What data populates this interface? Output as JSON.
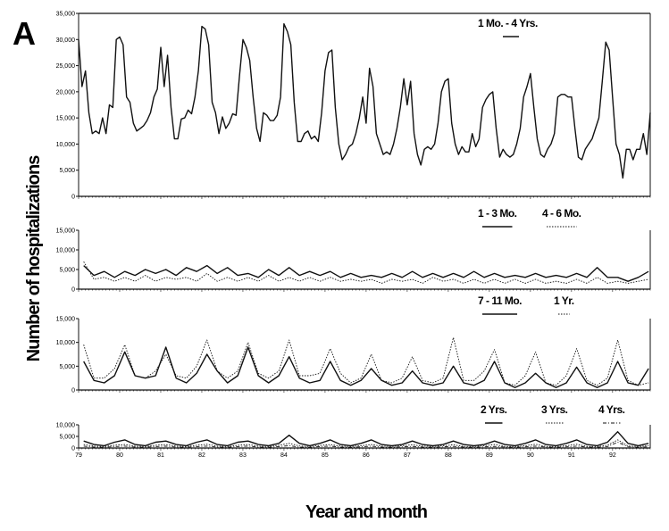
{
  "chart_data": {
    "type": "line",
    "panel_label": "A",
    "ylabel": "Number of hospitalizations",
    "xlabel": "Year and month",
    "x_tick_labels": [
      "79",
      "80",
      "81",
      "82",
      "83",
      "84",
      "85",
      "86",
      "87",
      "88",
      "89",
      "90",
      "91",
      "92"
    ],
    "x_start": "1979-01",
    "panels": [
      {
        "ylim": [
          0,
          35000
        ],
        "y_ticks": [
          "0",
          "5,000",
          "10,000",
          "15,000",
          "20,000",
          "25,000",
          "30,000",
          "35,000"
        ],
        "y_tick_values": [
          0,
          5000,
          10000,
          15000,
          20000,
          25000,
          30000,
          35000
        ],
        "resolution": "monthly",
        "series": [
          {
            "name": "1 Mo. - 4 Yrs.",
            "style": "solid",
            "values": [
              30000,
              21000,
              24000,
              16000,
              12000,
              12500,
              12000,
              15000,
              12000,
              17500,
              17000,
              30000,
              30500,
              29000,
              19000,
              18000,
              14000,
              12500,
              13000,
              13500,
              14500,
              16000,
              19000,
              20500,
              28500,
              21000,
              27000,
              17000,
              11000,
              11000,
              14800,
              15000,
              16500,
              15800,
              19000,
              24000,
              32500,
              32000,
              29000,
              18000,
              16000,
              12000,
              15200,
              13000,
              14000,
              15800,
              15500,
              23000,
              30000,
              28500,
              26000,
              19000,
              13000,
              10500,
              16000,
              15500,
              14500,
              14500,
              15500,
              19000,
              33000,
              31500,
              29000,
              18000,
              10500,
              10500,
              12000,
              12500,
              11000,
              11500,
              10500,
              16000,
              24000,
              27500,
              28000,
              17000,
              10000,
              7000,
              8000,
              9500,
              10000,
              12000,
              15000,
              19000,
              14000,
              24500,
              21000,
              12000,
              10000,
              8000,
              8500,
              8000,
              10000,
              13000,
              17000,
              22500,
              17500,
              22000,
              12000,
              8000,
              6000,
              9000,
              9500,
              9000,
              10000,
              14000,
              20000,
              22000,
              22500,
              14000,
              10000,
              8000,
              9500,
              8500,
              8500,
              12000,
              9500,
              11000,
              17000,
              18500,
              19500,
              20000,
              13000,
              7500,
              9000,
              8000,
              7500,
              8000,
              10000,
              13000,
              19000,
              21000,
              23500,
              17000,
              11000,
              8000,
              7500,
              9000,
              10000,
              12000,
              19000,
              19500,
              19500,
              19000,
              19000,
              13000,
              7500,
              7000,
              9000,
              10000,
              11000,
              13000,
              15000,
              22000,
              29500,
              28000,
              19000,
              10000,
              8000,
              3500,
              9000,
              9000,
              7000,
              9000,
              9000,
              12000,
              8000,
              16000
            ]
          }
        ]
      },
      {
        "ylim": [
          0,
          15000
        ],
        "y_ticks": [
          "0",
          "5,000",
          "10,000",
          "15,000"
        ],
        "y_tick_values": [
          0,
          5000,
          10000,
          15000
        ],
        "resolution": "quarterly",
        "series": [
          {
            "name": "1 - 3 Mo.",
            "style": "solid",
            "values": [
              6000,
              3500,
              4500,
              3000,
              4500,
              3500,
              5000,
              4000,
              5000,
              3500,
              5500,
              4500,
              6000,
              4000,
              5500,
              3500,
              4000,
              3000,
              5000,
              3500,
              5500,
              3500,
              4500,
              3500,
              4500,
              3000,
              4000,
              3000,
              3500,
              3000,
              4000,
              3000,
              4500,
              3000,
              4000,
              3000,
              4000,
              3000,
              4500,
              3000,
              4000,
              3000,
              3500,
              3000,
              4000,
              3000,
              3500,
              3000,
              4000,
              3000,
              5500,
              3000,
              3000,
              2000,
              3000,
              4500
            ]
          },
          {
            "name": "4 - 6 Mo.",
            "style": "dotted",
            "values": [
              7000,
              2500,
              3000,
              2000,
              3000,
              2000,
              3500,
              2000,
              3000,
              2500,
              3000,
              2000,
              4000,
              2000,
              3000,
              2000,
              3000,
              2000,
              3500,
              2000,
              3000,
              2000,
              3000,
              2000,
              3000,
              2000,
              2500,
              2000,
              2500,
              1500,
              2500,
              2000,
              2500,
              1500,
              3000,
              2000,
              2500,
              1500,
              2500,
              1500,
              2500,
              1500,
              2500,
              1500,
              2500,
              1500,
              2000,
              1500,
              2500,
              1500,
              3000,
              1500,
              2000,
              1500,
              2000,
              2500
            ]
          }
        ]
      },
      {
        "ylim": [
          0,
          15000
        ],
        "y_ticks": [
          "0",
          "5,000",
          "10,000",
          "15,000"
        ],
        "y_tick_values": [
          0,
          5000,
          10000,
          15000
        ],
        "resolution": "quarterly",
        "series": [
          {
            "name": "7 - 11 Mo.",
            "style": "solid",
            "values": [
              6000,
              2000,
              1500,
              3000,
              8000,
              3000,
              2500,
              3000,
              9000,
              2500,
              1500,
              3500,
              7500,
              4000,
              1500,
              3000,
              9000,
              3000,
              1500,
              3000,
              7000,
              2500,
              1500,
              2000,
              6000,
              2000,
              1000,
              2000,
              4500,
              2000,
              1000,
              1500,
              4000,
              1500,
              1000,
              1500,
              5000,
              1500,
              1000,
              2000,
              6000,
              1500,
              500,
              1500,
              3500,
              1500,
              500,
              1500,
              4800,
              1500,
              500,
              1500,
              6000,
              1500,
              1000,
              4500
            ]
          },
          {
            "name": "1 Yr.",
            "style": "dotted",
            "values": [
              9500,
              2500,
              2500,
              4500,
              9500,
              3000,
              2500,
              4000,
              7500,
              3000,
              2500,
              5000,
              10500,
              4000,
              2500,
              4000,
              10000,
              3500,
              2500,
              4000,
              10500,
              3000,
              3000,
              3500,
              8700,
              3500,
              1500,
              2500,
              7500,
              2000,
              1500,
              2500,
              7000,
              2000,
              1500,
              2500,
              11000,
              2000,
              2000,
              4000,
              8500,
              1500,
              1000,
              3000,
              8000,
              1500,
              1000,
              3000,
              8700,
              2000,
              1000,
              2500,
              10500,
              2000,
              1000,
              1500
            ]
          }
        ]
      },
      {
        "ylim": [
          0,
          10000
        ],
        "y_ticks": [
          "0",
          "5,000",
          "10,000"
        ],
        "y_tick_values": [
          0,
          5000,
          10000
        ],
        "resolution": "quarterly",
        "series": [
          {
            "name": "2 Yrs.",
            "style": "solid",
            "values": [
              3000,
              1500,
              1000,
              2500,
              3500,
              1500,
              1000,
              2500,
              3000,
              1500,
              1000,
              2500,
              3500,
              1500,
              1000,
              2500,
              3000,
              1500,
              1000,
              2000,
              5500,
              2000,
              1000,
              2000,
              3500,
              1500,
              1000,
              2000,
              3500,
              1500,
              1000,
              1500,
              3000,
              1500,
              1000,
              1500,
              3000,
              1500,
              1000,
              1500,
              3000,
              1500,
              1000,
              2000,
              3500,
              1500,
              1000,
              2000,
              3500,
              1500,
              1000,
              2500,
              7000,
              2000,
              1000,
              2000
            ]
          },
          {
            "name": "3 Yrs.",
            "style": "dotted",
            "values": [
              1500,
              800,
              600,
              1200,
              1500,
              800,
              600,
              1200,
              1500,
              800,
              600,
              1200,
              1600,
              800,
              600,
              1200,
              1500,
              800,
              600,
              1200,
              2000,
              900,
              600,
              1100,
              1500,
              800,
              600,
              1000,
              1500,
              800,
              600,
              1000,
              1400,
              800,
              600,
              1000,
              1400,
              700,
              600,
              1000,
              1500,
              700,
              600,
              1000,
              1600,
              700,
              600,
              1000,
              1600,
              700,
              600,
              1200,
              3500,
              900,
              600,
              1000
            ]
          },
          {
            "name": "4 Yrs.",
            "style": "dash-dot",
            "values": [
              800,
              400,
              300,
              600,
              800,
              400,
              300,
              600,
              800,
              400,
              300,
              600,
              800,
              400,
              300,
              600,
              800,
              400,
              300,
              600,
              1000,
              400,
              300,
              600,
              800,
              400,
              300,
              500,
              800,
              400,
              300,
              500,
              700,
              400,
              300,
              500,
              700,
              400,
              300,
              500,
              700,
              400,
              300,
              500,
              800,
              400,
              300,
              500,
              800,
              400,
              300,
              600,
              2500,
              500,
              300,
              500
            ]
          }
        ]
      }
    ]
  }
}
